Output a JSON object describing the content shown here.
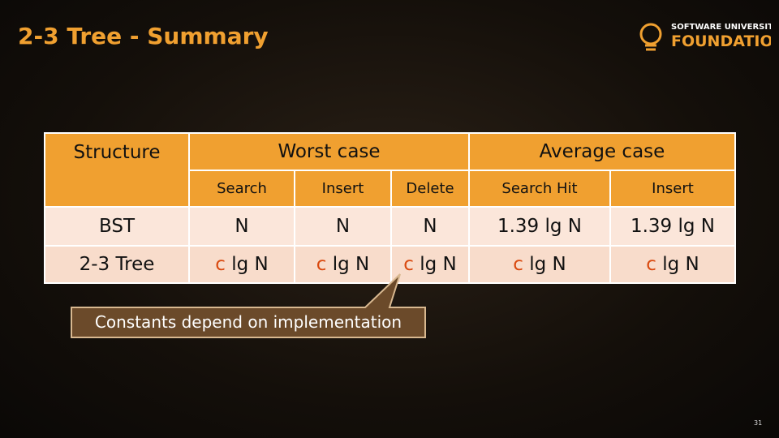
{
  "header": {
    "title": "2-3 Tree - Summary",
    "logo_top": "SOFTWARE UNIVERSITY",
    "logo_bottom": "FOUNDATION"
  },
  "table": {
    "structure_header": "Structure",
    "worst_header": "Worst case",
    "average_header": "Average case",
    "subheaders": [
      "Search",
      "Insert",
      "Delete",
      "Search Hit",
      "Insert"
    ],
    "rows": [
      {
        "name": "BST",
        "cells": [
          "N",
          "N",
          "N",
          "1.39 lg N",
          "1.39 lg N"
        ]
      },
      {
        "name": "2-3 Tree",
        "cells": [
          {
            "factor": "c",
            "term": "lg N"
          },
          {
            "factor": "c",
            "term": "lg N"
          },
          {
            "factor": "c",
            "term": "lg N"
          },
          {
            "factor": "c",
            "term": "lg N"
          },
          {
            "factor": "c",
            "term": "lg N"
          }
        ]
      }
    ]
  },
  "callout": "Constants depend on implementation",
  "page_number": "31"
}
